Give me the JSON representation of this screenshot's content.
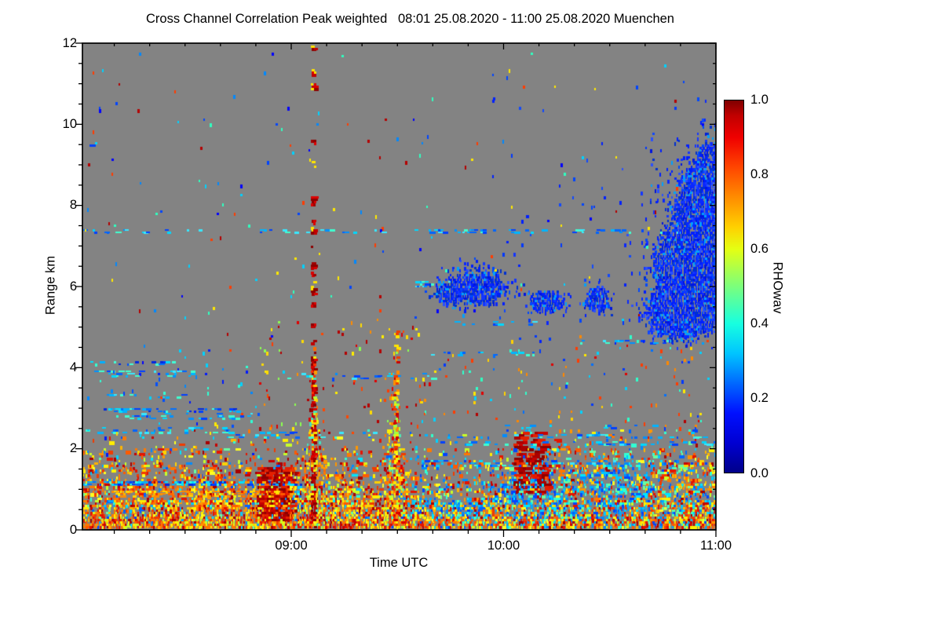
{
  "title": "Cross Channel Correlation Peak weighted   08:01 25.08.2020 - 11:00 25.08.2020 Muenchen",
  "axes": {
    "x_label": "Time UTC",
    "y_label": "Range km"
  },
  "colorbar_label": "RHOwav",
  "chart_data": {
    "type": "heatmap",
    "title": "Cross Channel Correlation Peak weighted",
    "subtitle": "08:01 25.08.2020 - 11:00 25.08.2020 Muenchen",
    "station": "Muenchen",
    "xlabel": "Time UTC",
    "ylabel": "Range km",
    "x_start": "08:01",
    "x_end": "11:00",
    "x_duration_min": 179,
    "ylim": [
      0,
      12
    ],
    "x_ticks": [
      {
        "label": "09:00",
        "minute": 59
      },
      {
        "label": "10:00",
        "minute": 119
      },
      {
        "label": "11:00",
        "minute": 179
      }
    ],
    "x_minor_step_min": 10,
    "y_ticks": [
      {
        "label": "0",
        "km": 0
      },
      {
        "label": "2",
        "km": 2
      },
      {
        "label": "4",
        "km": 4
      },
      {
        "label": "6",
        "km": 6
      },
      {
        "label": "8",
        "km": 8
      },
      {
        "label": "10",
        "km": 10
      },
      {
        "label": "12",
        "km": 12
      }
    ],
    "y_minor_step_km": 0.5,
    "colorbar": {
      "label": "RHOwav",
      "lim": [
        0,
        1
      ],
      "ticks": [
        {
          "label": "0.0",
          "value": 0.0
        },
        {
          "label": "0.2",
          "value": 0.2
        },
        {
          "label": "0.4",
          "value": 0.4
        },
        {
          "label": "0.6",
          "value": 0.6
        },
        {
          "label": "0.8",
          "value": 0.8
        },
        {
          "label": "1.0",
          "value": 1.0
        }
      ],
      "minor_step": 0.05,
      "colormap": "jet",
      "gradient_stops": [
        [
          "0%",
          "#000089"
        ],
        [
          "8%",
          "#0000d2"
        ],
        [
          "16%",
          "#0010ff"
        ],
        [
          "24%",
          "#0068ff"
        ],
        [
          "32%",
          "#00c4ff"
        ],
        [
          "40%",
          "#17ffe0"
        ],
        [
          "47%",
          "#5cff9b"
        ],
        [
          "54%",
          "#a4ff53"
        ],
        [
          "60%",
          "#e4ff13"
        ],
        [
          "66%",
          "#ffd000"
        ],
        [
          "74%",
          "#ff8c00"
        ],
        [
          "82%",
          "#ff4600"
        ],
        [
          "90%",
          "#f00000"
        ],
        [
          "96%",
          "#c00000"
        ],
        [
          "100%",
          "#7f0000"
        ]
      ]
    },
    "no_data_color": "#838383",
    "features_summary": [
      "Dense near-surface layer 0 to ~2.2 km over whole period, high correlation (warm colors, rho 0.6-1.0), cyan low-rho patches after ~09:35",
      "Narrow high-correlation plume/spike at ~09:06 reaching 11.3 km with intermittent dark-red segments",
      "Second plume at ~09:29 reaching ~4.9 km",
      "Low-correlation (rho ~0.1, blue) cloud layer 5.4-6.4 km from ~09:43 to ~10:27",
      "Large blue cloud mass 4.9-9.7 km from ~10:25 to 11:00 touching right edge",
      "Thin horizontal artifact streaks of cyan/blue at 7.35 km and between 2-4.7 km",
      "Gray background indicates no data / masked values"
    ],
    "render": {
      "seed": 20200825,
      "palettes": {
        "warm": [
          "#a80000",
          "#c80000",
          "#e41400",
          "#f03c00",
          "#ff5a00",
          "#ff7800",
          "#ff9600",
          "#ffb400",
          "#ffd200",
          "#fff000",
          "#ffff20",
          "#c8ff28",
          "#f03c00",
          "#ff7800",
          "#ffee00",
          "#e41400"
        ],
        "cool": [
          "#00e4ff",
          "#00c8ff",
          "#00aaff",
          "#008cff",
          "#0064ff",
          "#30ffd4",
          "#68ffa0",
          "#0044ff"
        ],
        "blue": [
          "#0014e0",
          "#001eff",
          "#0a28ff",
          "#1436ff",
          "#0048ff",
          "#2a50ff",
          "#0030d0",
          "#001eff",
          "#0a28ff",
          "#1436ff",
          "#0030d0",
          "#00a0ff"
        ],
        "cool_streak": [
          "#00d8ff",
          "#00b4ff",
          "#0090ff",
          "#38e8ff",
          "#0064ff",
          "#0040ff",
          "#40ffd0"
        ],
        "cool_strong": [
          "#00e0ff",
          "#00b0ff",
          "#0070ff",
          "#0040ff",
          "#0028e0",
          "#40ffd8"
        ],
        "warm_streak": [
          "#ff8c00",
          "#ffb400",
          "#ff6400",
          "#ffd800"
        ],
        "speckle": [
          "#00d2ff",
          "#0088ff",
          "#0044ff",
          "#0000ff",
          "#ff3c00",
          "#ffe900",
          "#30ffc0",
          "#b40000"
        ],
        "warm_speckle": [
          "#e00000",
          "#ff4600",
          "#ff8c00",
          "#ffdc00",
          "#b40000",
          "#ffee00",
          "#8cff50"
        ],
        "mix_speckle": [
          "#ff3c00",
          "#ffd200",
          "#00d2ff",
          "#0070ff",
          "#e00000",
          "#30ffcc",
          "#0038ff",
          "#ff8800"
        ],
        "cool_speckle": [
          "#00d2ff",
          "#0088ff",
          "#0050ff",
          "#0018ff",
          "#30ffd4"
        ],
        "blue_speckle": [
          "#0020ff",
          "#0038ff",
          "#1048ff"
        ],
        "dark_warm": [
          "#8c0000",
          "#aa0000",
          "#c80000",
          "#e42000"
        ]
      },
      "band": {
        "max_km": 2.5,
        "cool_t_split": 92,
        "cool_frac_left": 0.1,
        "cool_frac_right": 0.38,
        "cool_patches": [
          {
            "t": 127,
            "km": 1.0,
            "rt": 10,
            "rkm": 0.6,
            "boost": 0.5
          },
          {
            "t": 152,
            "km": 1.3,
            "rt": 11,
            "rkm": 0.75,
            "boost": 0.55
          },
          {
            "t": 106,
            "km": 0.5,
            "rt": 7,
            "rkm": 0.4,
            "boost": 0.3
          },
          {
            "t": 140,
            "km": 0.6,
            "rt": 30,
            "rkm": 0.5,
            "boost": 0.15
          }
        ]
      },
      "streaks": [
        {
          "km": 7.35,
          "t0": 0,
          "t1": 179,
          "d": 0.1,
          "p": "cool_streak"
        },
        {
          "km": 7.35,
          "t0": 96,
          "t1": 122,
          "d": 0.26,
          "p": "cool_streak"
        },
        {
          "km": 9.5,
          "t0": 0,
          "t1": 8,
          "d": 0.22,
          "p": "cool_streak"
        },
        {
          "km": 4.1,
          "t0": 0,
          "t1": 26,
          "d": 0.3,
          "p": "cool_strong"
        },
        {
          "km": 3.85,
          "t0": 2,
          "t1": 32,
          "d": 0.16,
          "p": "cool_streak"
        },
        {
          "km": 3.3,
          "t0": 4,
          "t1": 32,
          "d": 0.13,
          "p": "cool_streak"
        },
        {
          "km": 2.95,
          "t0": 6,
          "t1": 44,
          "d": 0.24,
          "p": "cool_strong"
        },
        {
          "km": 2.8,
          "t0": 10,
          "t1": 48,
          "d": 0.16,
          "p": "cool_streak"
        },
        {
          "km": 2.45,
          "t0": 0,
          "t1": 42,
          "d": 0.14,
          "p": "cool_streak"
        },
        {
          "km": 2.35,
          "t0": 40,
          "t1": 84,
          "d": 0.16,
          "p": "cool_streak"
        },
        {
          "km": 2.3,
          "t0": 96,
          "t1": 179,
          "d": 0.15,
          "p": "cool_streak"
        },
        {
          "km": 2.15,
          "t0": 100,
          "t1": 179,
          "d": 0.13,
          "p": "cool_streak"
        },
        {
          "km": 2.55,
          "t0": 118,
          "t1": 162,
          "d": 0.11,
          "p": "cool_streak"
        },
        {
          "km": 1.15,
          "t0": 0,
          "t1": 62,
          "d": 0.42,
          "p": "cool_strong"
        },
        {
          "km": 0.9,
          "t0": 8,
          "t1": 56,
          "d": 0.3,
          "p": "warm_streak"
        },
        {
          "km": 4.65,
          "t0": 136,
          "t1": 172,
          "d": 0.16,
          "p": "cool_streak"
        },
        {
          "km": 4.35,
          "t0": 98,
          "t1": 128,
          "d": 0.18,
          "p": "cool_streak"
        },
        {
          "km": 6.05,
          "t0": 94,
          "t1": 104,
          "d": 0.28,
          "p": "cool_streak"
        },
        {
          "km": 5.1,
          "t0": 100,
          "t1": 128,
          "d": 0.11,
          "p": "cool_streak"
        },
        {
          "km": 3.8,
          "t0": 58,
          "t1": 100,
          "d": 0.11,
          "p": "cool_streak"
        },
        {
          "km": 1.65,
          "t0": 96,
          "t1": 150,
          "d": 0.18,
          "p": "cool_streak"
        }
      ],
      "dark_patches": [
        {
          "t0": 49,
          "t1": 58.5,
          "k0": 0.25,
          "k1": 1.55,
          "d": 0.5
        },
        {
          "t0": 121.5,
          "t1": 131,
          "k0": 0.9,
          "k1": 2.45,
          "d": 0.3
        }
      ],
      "spikes": [
        {
          "t": 65,
          "core_top": 4.5,
          "inner_d": 0.8,
          "od": 0.5,
          "widths": [
            [
              4.5,
              6
            ],
            [
              3.5,
              9
            ],
            [
              3,
              12
            ],
            [
              2.5,
              14
            ],
            [
              2,
              18
            ],
            [
              1.5,
              26
            ],
            [
              1,
              40
            ],
            [
              0.5,
              54
            ],
            [
              0.06,
              58
            ]
          ],
          "segments": [
            [
              11.82,
              11.94,
              0.5
            ],
            [
              11.22,
              11.38,
              0.8
            ],
            [
              10.82,
              11.02,
              0.85
            ],
            [
              9.52,
              9.62,
              0.35
            ],
            [
              8.92,
              9.08,
              0.45
            ],
            [
              8.02,
              8.22,
              0.9
            ],
            [
              7.52,
              7.66,
              0.55
            ],
            [
              7.32,
              7.46,
              0.8
            ],
            [
              6.92,
              7.06,
              0.5
            ],
            [
              6.46,
              6.62,
              0.7
            ],
            [
              6.26,
              6.42,
              0.6
            ],
            [
              6.06,
              6.2,
              0.5
            ],
            [
              5.82,
              6.0,
              0.75
            ],
            [
              5.52,
              5.68,
              0.6
            ],
            [
              4.96,
              5.12,
              0.5
            ],
            [
              4.56,
              4.72,
              0.55
            ]
          ],
          "inner": [
            "#8c0000",
            "#a00000",
            "#c00000",
            "#dc0000"
          ],
          "outer": [
            "#dc0000",
            "#ff3000",
            "#ff6a00",
            "#ff9e00",
            "#ffd200",
            "#ffee00",
            "#b4ff3c",
            "#44e0c0"
          ]
        },
        {
          "t": 88,
          "core_top": 3.95,
          "inner_d": 0.65,
          "od": 0.42,
          "widths": [
            [
              3.95,
              5
            ],
            [
              3,
              11
            ],
            [
              2.5,
              15
            ],
            [
              2,
              21
            ],
            [
              1.5,
              27
            ],
            [
              1,
              30
            ],
            [
              0.5,
              34
            ],
            [
              0.06,
              36
            ]
          ],
          "segments": [
            [
              4.76,
              4.9,
              0.35
            ],
            [
              4.4,
              4.56,
              0.45
            ],
            [
              4.08,
              4.3,
              0.3
            ]
          ],
          "inner": [
            "#c80000",
            "#ee3c00",
            "#ff8c00",
            "#ffe400",
            "#a0ff40"
          ],
          "outer": [
            "#ff4600",
            "#ff8200",
            "#ffc800",
            "#fff000",
            "#b4ff3c",
            "#50e8b4",
            "#e00000"
          ]
        }
      ],
      "clouds": [
        {
          "t": 110.5,
          "km": 5.95,
          "rt": 10.5,
          "rkm": 0.42,
          "d": 0.88
        },
        {
          "t": 112.5,
          "km": 6.35,
          "rt": 5.5,
          "rkm": 0.3,
          "d": 0.35
        },
        {
          "t": 102.5,
          "km": 5.85,
          "rt": 4,
          "rkm": 0.28,
          "d": 0.5
        },
        {
          "t": 110,
          "km": 6.1,
          "rt": 13,
          "rkm": 0.8,
          "d": 0.06
        },
        {
          "t": 131,
          "km": 5.65,
          "rt": 5.5,
          "rkm": 0.33,
          "d": 0.82
        },
        {
          "t": 131,
          "km": 5.65,
          "rt": 8,
          "rkm": 0.55,
          "d": 0.08
        },
        {
          "t": 145.5,
          "km": 5.68,
          "rt": 4,
          "rkm": 0.34,
          "d": 0.85
        },
        {
          "t": 145.5,
          "km": 5.68,
          "rt": 6.5,
          "rkm": 0.55,
          "d": 0.08
        },
        {
          "t": 172,
          "km": 6.3,
          "rt": 12,
          "rkm": 1.5,
          "d": 0.92
        },
        {
          "t": 175,
          "km": 7.9,
          "rt": 8.5,
          "rkm": 1.2,
          "d": 0.9
        },
        {
          "t": 178.5,
          "km": 8.7,
          "rt": 6,
          "rkm": 1.0,
          "d": 0.85
        },
        {
          "t": 169,
          "km": 5.35,
          "rt": 12,
          "rkm": 0.7,
          "d": 0.8
        },
        {
          "t": 172,
          "km": 7.2,
          "rt": 16,
          "rkm": 2.7,
          "d": 0.1
        },
        {
          "t": 177,
          "km": 9.5,
          "rt": 6,
          "rkm": 1.0,
          "d": 0.09
        }
      ],
      "speckles": [
        {
          "t0": 0,
          "t1": 179,
          "k0": 2.45,
          "k1": 11.95,
          "d": 0.0035,
          "p": "speckle"
        },
        {
          "t0": 50,
          "t1": 97,
          "k0": 2.2,
          "k1": 5.2,
          "d": 0.028,
          "p": "warm_speckle"
        },
        {
          "t0": 96,
          "t1": 179,
          "k0": 2.2,
          "k1": 4.8,
          "d": 0.02,
          "p": "mix_speckle"
        },
        {
          "t0": 0,
          "t1": 50,
          "k0": 1.7,
          "k1": 4.6,
          "d": 0.018,
          "p": "cool_speckle"
        },
        {
          "t0": 112,
          "t1": 179,
          "k0": 4.6,
          "k1": 10.8,
          "d": 0.006,
          "p": "blue_speckle"
        },
        {
          "t0": 55,
          "t1": 112,
          "k0": 5,
          "k1": 11.8,
          "d": 0.002,
          "p": "speckle"
        },
        {
          "t0": 0,
          "t1": 55,
          "k0": 4.6,
          "k1": 11.8,
          "d": 0.0012,
          "p": "speckle"
        }
      ]
    }
  }
}
